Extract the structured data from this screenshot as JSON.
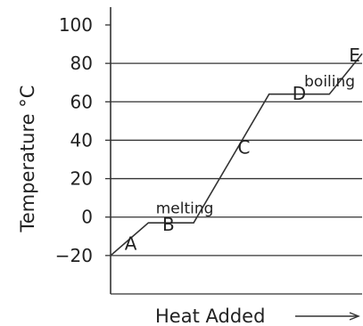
{
  "chart_data": {
    "type": "line",
    "xlabel": "Heat Added",
    "ylabel": "Temperature °C",
    "ylim": [
      -40,
      100
    ],
    "y_ticks": [
      {
        "value": 100,
        "label": "100"
      },
      {
        "value": 80,
        "label": "80"
      },
      {
        "value": 60,
        "label": "60"
      },
      {
        "value": 40,
        "label": "40"
      },
      {
        "value": 20,
        "label": "20"
      },
      {
        "value": 0,
        "label": "0"
      },
      {
        "value": -20,
        "label": "−20"
      }
    ],
    "gridlines_y": [
      80,
      60,
      40,
      20,
      0,
      -20,
      -40
    ],
    "grid": true,
    "xlim": [
      0,
      1
    ],
    "series": [
      {
        "x": [
          0,
          0.15,
          0.33,
          0.63,
          0.87,
          1
        ],
        "y": [
          -20,
          -3,
          -3,
          64,
          64,
          85
        ]
      }
    ],
    "annotations": [
      {
        "text": "melting",
        "x": 0.18,
        "y": 2,
        "kind": "word"
      },
      {
        "text": "boiling",
        "x": 0.77,
        "y": 68,
        "kind": "word"
      },
      {
        "text": "A",
        "x": 0.08,
        "y": -17,
        "kind": "letter"
      },
      {
        "text": "B",
        "x": 0.23,
        "y": -7,
        "kind": "letter"
      },
      {
        "text": "C",
        "x": 0.53,
        "y": 33,
        "kind": "letter"
      },
      {
        "text": "D",
        "x": 0.75,
        "y": 61,
        "kind": "letter"
      },
      {
        "text": "E",
        "x": 0.97,
        "y": 81,
        "kind": "letter"
      }
    ],
    "line_color": "#333333",
    "grid_color": "#333333"
  }
}
